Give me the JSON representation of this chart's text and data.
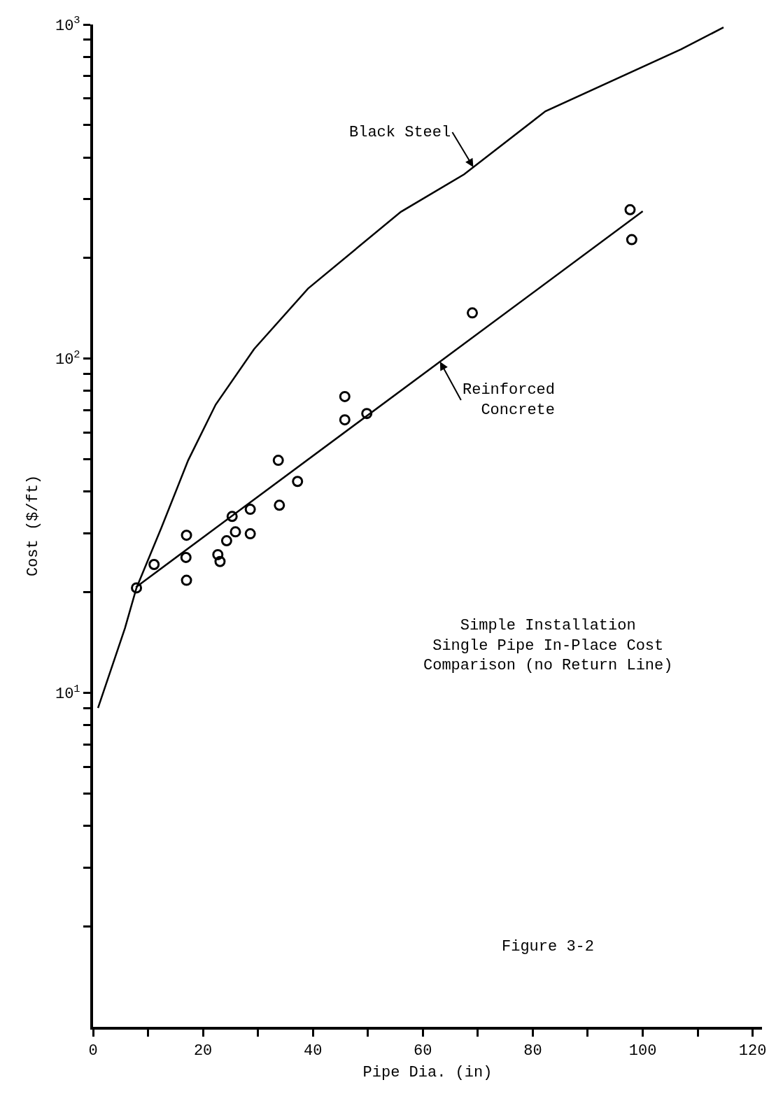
{
  "chart_data": {
    "type": "line",
    "xlabel": "Pipe Dia. (in)",
    "ylabel": "Cost ($/ft)",
    "series": [
      {
        "name": "Black Steel",
        "color": "#000000",
        "x": [
          0.9,
          5.8,
          7.9,
          12.4,
          17.3,
          22.3,
          29.3,
          39.1,
          56.0,
          67.5,
          82.3,
          107,
          114.7
        ],
        "values": [
          9.0,
          15.6,
          20.6,
          31.1,
          49.6,
          72.8,
          106.8,
          162,
          275,
          356,
          550,
          843,
          980
        ]
      },
      {
        "name": "Reinforced Concrete",
        "color": "#000000",
        "x": [
          7.8,
          100
        ],
        "values": [
          20.7,
          276
        ]
      },
      {
        "color": "#000000",
        "type": "scatter",
        "marker": "circle",
        "x": [
          7.9,
          11.1,
          17.0,
          16.9,
          17.0,
          22.7,
          23.1,
          24.3,
          25.3,
          25.9,
          28.6,
          28.6,
          33.7,
          33.9,
          37.2,
          45.8,
          45.8,
          49.8,
          69.0,
          97.7,
          98.0
        ],
        "values": [
          20.6,
          24.2,
          29.6,
          25.4,
          21.7,
          25.9,
          24.7,
          28.5,
          33.7,
          30.3,
          35.4,
          29.9,
          49.6,
          36.4,
          42.9,
          77.0,
          65.6,
          68.5,
          137,
          279,
          227
        ]
      }
    ],
    "annotations": [
      "Simple Installation\nSingle Pipe In-Place Cost\nComparison (no Return Line)",
      "Figure 3-2"
    ],
    "log": "y",
    "legend": false,
    "xlim": [
      0,
      121.7
    ],
    "xticks": [
      0,
      {
        "value": 10,
        "label": null
      },
      20,
      {
        "value": 30,
        "label": null
      },
      40,
      {
        "value": 50,
        "label": null
      },
      60,
      {
        "value": 70,
        "label": null
      },
      80,
      {
        "value": 90,
        "label": null
      },
      100,
      {
        "value": 110,
        "label": null
      },
      120
    ],
    "ylim": [
      1,
      1000
    ],
    "yticks": [
      {
        "value": 2,
        "label": null
      },
      {
        "value": 3,
        "label": null
      },
      {
        "value": 4,
        "label": null
      },
      {
        "value": 5,
        "label": null
      },
      {
        "value": 6,
        "label": null
      },
      {
        "value": 7,
        "label": null
      },
      {
        "value": 8,
        "label": null
      },
      {
        "value": 9,
        "label": null
      },
      {
        "value": 10,
        "label": "10$^{1}$"
      },
      {
        "value": 20,
        "label": null
      },
      {
        "value": 30,
        "label": null
      },
      {
        "value": 40,
        "label": null
      },
      {
        "value": 50,
        "label": null
      },
      {
        "value": 60,
        "label": null
      },
      {
        "value": 70,
        "label": null
      },
      {
        "value": 80,
        "label": null
      },
      {
        "value": 90,
        "label": null
      },
      {
        "value": 100,
        "label": "10$^{2}$"
      },
      {
        "value": 200,
        "label": null
      },
      {
        "value": 300,
        "label": null
      },
      {
        "value": 400,
        "label": null
      },
      {
        "value": 500,
        "label": null
      },
      {
        "value": 600,
        "label": null
      },
      {
        "value": 700,
        "label": null
      },
      {
        "value": 800,
        "label": null
      },
      {
        "value": 900,
        "label": null
      },
      {
        "value": 1000,
        "label": "10$^{3}$"
      }
    ]
  }
}
